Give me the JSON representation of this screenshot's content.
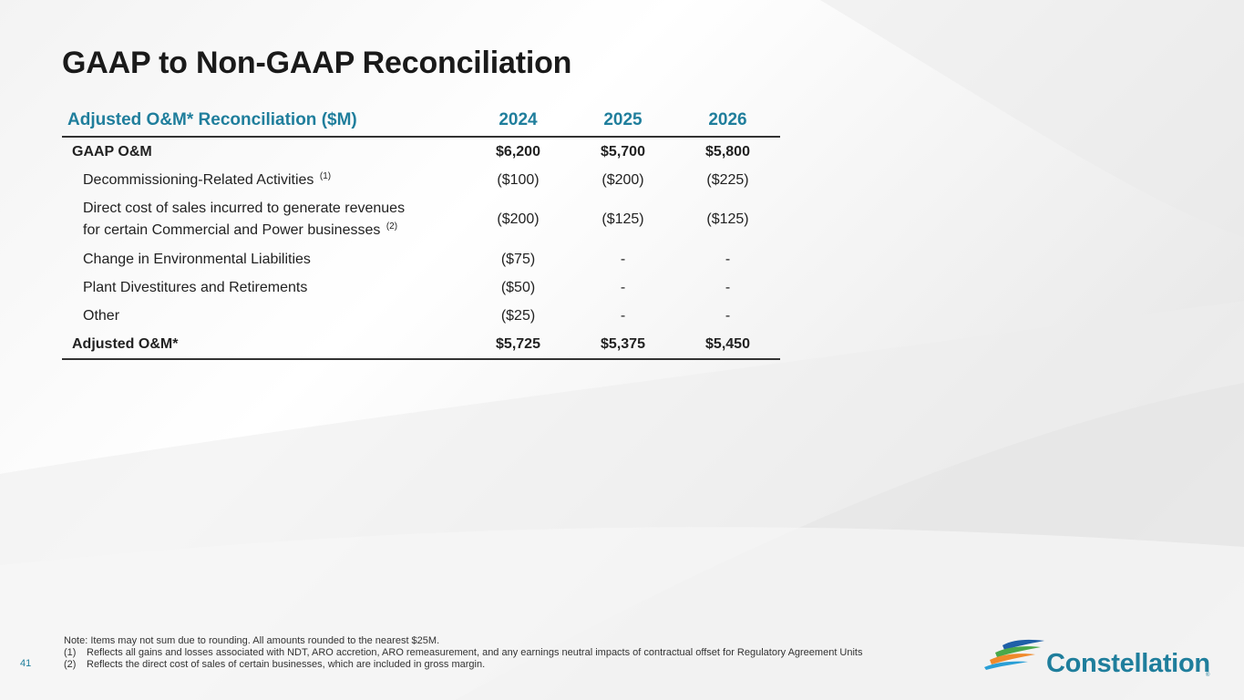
{
  "title": "GAAP to Non-GAAP Reconciliation",
  "table": {
    "headers": [
      "Adjusted O&M* Reconciliation ($M)",
      "2024",
      "2025",
      "2026"
    ],
    "rows": [
      {
        "label": "GAAP O&M",
        "values": [
          "$6,200",
          "$5,700",
          "$5,800"
        ]
      },
      {
        "label": "Decommissioning-Related Activities",
        "footnote": "(1)",
        "values": [
          "($100)",
          "($200)",
          "($225)"
        ]
      },
      {
        "label_line1": "Direct cost of sales incurred to generate revenues",
        "label_line2": "for certain Commercial and Power businesses",
        "footnote": "(2)",
        "values": [
          "($200)",
          "($125)",
          "($125)"
        ]
      },
      {
        "label": "Change in Environmental Liabilities",
        "values": [
          "($75)",
          "-",
          "-"
        ]
      },
      {
        "label": "Plant Divestitures and Retirements",
        "values": [
          "($50)",
          "-",
          "-"
        ]
      },
      {
        "label": "Other",
        "values": [
          "($25)",
          "-",
          "-"
        ]
      },
      {
        "label": "Adjusted O&M*",
        "values": [
          "$5,725",
          "$5,375",
          "$5,450"
        ]
      }
    ]
  },
  "footnotes": {
    "note": "Note: Items may not sum due to rounding. All amounts rounded to the nearest $25M.",
    "items": [
      {
        "num": "(1)",
        "text": "Reflects all gains and losses associated with NDT, ARO accretion, ARO remeasurement, and any earnings neutral impacts of contractual offset for Regulatory Agreement Units"
      },
      {
        "num": "(2)",
        "text": "Reflects the direct cost of sales of certain businesses, which are included in gross margin."
      }
    ]
  },
  "page_number": "41",
  "logo": {
    "text": "Constellation",
    "reg": "®"
  },
  "colors": {
    "accent": "#1f7e9c",
    "logo_blue": "#1f5fa8",
    "logo_green": "#4aa84a",
    "logo_orange": "#f08a2b"
  }
}
